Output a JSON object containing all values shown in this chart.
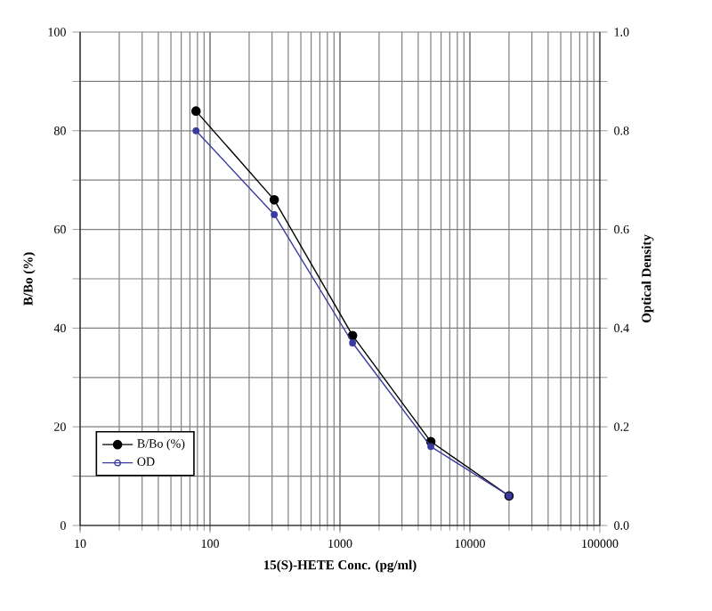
{
  "chart_data": {
    "type": "line",
    "xlabel": "15(S)-HETE Conc. (pg/ml)",
    "ylabel": "B/Bo (%)",
    "y2label": "Optical Density",
    "log": "x",
    "grid": true,
    "legend": "bottom left",
    "marker": "circle",
    "x": [
      78,
      312,
      1250,
      5000,
      20000
    ],
    "xlim": [
      10,
      100000
    ],
    "xticks": [
      10,
      100,
      1000,
      10000,
      100000
    ],
    "ylim": [
      0,
      100
    ],
    "yticks": [
      0,
      {
        "value": 10,
        "label": null
      },
      20,
      {
        "value": 30,
        "label": null
      },
      40,
      {
        "value": 50,
        "label": null
      },
      60,
      {
        "value": 70,
        "label": null
      },
      80,
      {
        "value": 90,
        "label": null
      },
      100
    ],
    "y2lim": [
      0,
      1
    ],
    "y2ticks": [
      {
        "value": 0,
        "label": "0.0"
      },
      {
        "value": 0.1,
        "label": null
      },
      {
        "value": 0.2,
        "label": "0.2"
      },
      {
        "value": 0.3,
        "label": null
      },
      {
        "value": 0.4,
        "label": "0.4"
      },
      {
        "value": 0.5,
        "label": null
      },
      {
        "value": 0.6,
        "label": "0.6"
      },
      {
        "value": 0.7,
        "label": null
      },
      {
        "value": 0.8,
        "label": "0.8"
      },
      {
        "value": 0.9,
        "label": null
      },
      {
        "value": 1,
        "label": "1.0"
      }
    ],
    "series": [
      {
        "name": "B/Bo (%)",
        "color": "#000000",
        "values": [
          84,
          66,
          38.5,
          17,
          6
        ]
      },
      {
        "name": "OD",
        "color": "#3a3aa0",
        "axis": "y2",
        "values": [
          0.8,
          0.63,
          0.37,
          0.16,
          0.06
        ]
      }
    ]
  }
}
